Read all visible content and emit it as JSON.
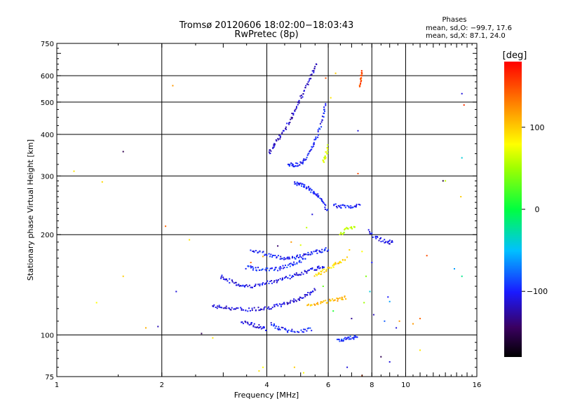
{
  "header": {
    "title": "Tromsø 20120606 18:02:00−18:03:43",
    "subtitle": "RwPretec (8p)",
    "stats_title": "Phases",
    "stats_o": "mean, sd,O:  −99.7, 17.6",
    "stats_x": "mean, sd,X:   87.1, 24.0"
  },
  "colorbar": {
    "unit": "[deg]",
    "range": [
      -180,
      180
    ],
    "ticks": [
      {
        "v": 100,
        "label": "100"
      },
      {
        "v": 0,
        "label": "0"
      },
      {
        "v": -100,
        "label": "−100"
      }
    ]
  },
  "chart_data": {
    "type": "scatter",
    "xlabel": "Frequency [MHz]",
    "ylabel": "Stationary phase Virtual Height [km]",
    "xscale": "log",
    "yscale": "log",
    "xlim": [
      1,
      16
    ],
    "ylim": [
      75,
      750
    ],
    "xticks": [
      {
        "v": 1,
        "label": "1"
      },
      {
        "v": 2,
        "label": "2"
      },
      {
        "v": 4,
        "label": "4"
      },
      {
        "v": 6,
        "label": "6"
      },
      {
        "v": 8,
        "label": "8"
      },
      {
        "v": 10,
        "label": "10"
      },
      {
        "v": 16,
        "label": "16"
      }
    ],
    "yticks": [
      {
        "v": 75,
        "label": "75"
      },
      {
        "v": 100,
        "label": "100"
      },
      {
        "v": 200,
        "label": "200"
      },
      {
        "v": 300,
        "label": "300"
      },
      {
        "v": 400,
        "label": "400"
      },
      {
        "v": 500,
        "label": "500"
      },
      {
        "v": 600,
        "label": "600"
      },
      {
        "v": 750,
        "label": "750"
      }
    ],
    "grid_x": [
      2,
      4,
      6,
      8,
      10
    ],
    "grid_y": [
      100,
      200,
      300,
      400,
      500,
      600
    ],
    "colorscale": "rainbow",
    "traces": [
      {
        "phase": -110,
        "points": [
          [
            2.8,
            122
          ],
          [
            3.0,
            121
          ],
          [
            3.2,
            120
          ],
          [
            3.5,
            119
          ],
          [
            3.8,
            120
          ],
          [
            4.1,
            121
          ],
          [
            4.4,
            123
          ],
          [
            4.7,
            126
          ],
          [
            5.0,
            129
          ],
          [
            5.3,
            133
          ],
          [
            5.5,
            137
          ]
        ]
      },
      {
        "phase": -105,
        "points": [
          [
            2.95,
            150
          ],
          [
            3.1,
            146
          ],
          [
            3.3,
            142
          ],
          [
            3.5,
            140
          ],
          [
            3.8,
            141
          ],
          [
            4.1,
            144
          ],
          [
            4.4,
            147
          ],
          [
            4.7,
            150
          ],
          [
            5.0,
            153
          ],
          [
            5.3,
            156
          ],
          [
            5.6,
            159
          ],
          [
            5.9,
            161
          ]
        ]
      },
      {
        "phase": -100,
        "points": [
          [
            3.6,
            180
          ],
          [
            3.9,
            176
          ],
          [
            4.2,
            172
          ],
          [
            4.5,
            170
          ],
          [
            4.8,
            171
          ],
          [
            5.1,
            173
          ],
          [
            5.4,
            176
          ],
          [
            5.7,
            179
          ],
          [
            6.0,
            181
          ]
        ]
      },
      {
        "phase": -95,
        "points": [
          [
            3.5,
            160
          ],
          [
            3.7,
            158
          ],
          [
            4.0,
            157
          ],
          [
            4.3,
            158
          ],
          [
            4.6,
            161
          ],
          [
            4.9,
            165
          ],
          [
            5.2,
            170
          ]
        ]
      },
      {
        "phase": -115,
        "points": [
          [
            4.05,
            350
          ],
          [
            4.2,
            370
          ],
          [
            4.4,
            400
          ],
          [
            4.6,
            430
          ],
          [
            4.8,
            470
          ],
          [
            5.0,
            510
          ],
          [
            5.2,
            560
          ],
          [
            5.4,
            610
          ],
          [
            5.55,
            650
          ]
        ]
      },
      {
        "phase": -100,
        "points": [
          [
            4.6,
            325
          ],
          [
            4.8,
            323
          ],
          [
            5.0,
            328
          ],
          [
            5.2,
            340
          ],
          [
            5.4,
            365
          ],
          [
            5.6,
            400
          ],
          [
            5.8,
            450
          ],
          [
            5.9,
            500
          ]
        ]
      },
      {
        "phase": -100,
        "points": [
          [
            4.1,
            108
          ],
          [
            4.3,
            105
          ],
          [
            4.6,
            103
          ],
          [
            5.0,
            103
          ],
          [
            5.4,
            104
          ]
        ]
      },
      {
        "phase": -110,
        "points": [
          [
            3.4,
            110
          ],
          [
            3.6,
            108
          ],
          [
            3.8,
            106
          ],
          [
            4.0,
            104
          ]
        ]
      },
      {
        "phase": -95,
        "points": [
          [
            6.4,
            97
          ],
          [
            6.7,
            97
          ],
          [
            7.0,
            98
          ],
          [
            7.3,
            100
          ]
        ]
      },
      {
        "phase": -100,
        "points": [
          [
            6.2,
            245
          ],
          [
            6.6,
            243
          ],
          [
            7.0,
            242
          ],
          [
            7.4,
            244
          ]
        ]
      },
      {
        "phase": -105,
        "points": [
          [
            7.8,
            205
          ],
          [
            8.3,
            195
          ],
          [
            8.8,
            190
          ],
          [
            9.2,
            190
          ]
        ]
      },
      {
        "phase": -100,
        "points": [
          [
            4.8,
            285
          ],
          [
            5.0,
            282
          ],
          [
            5.2,
            278
          ],
          [
            5.4,
            270
          ],
          [
            5.6,
            262
          ],
          [
            5.8,
            250
          ],
          [
            6.0,
            235
          ]
        ]
      },
      {
        "phase": 110,
        "points": [
          [
            5.2,
            122
          ],
          [
            5.6,
            124
          ],
          [
            6.0,
            126
          ],
          [
            6.4,
            128
          ],
          [
            6.8,
            130
          ]
        ]
      },
      {
        "phase": 95,
        "points": [
          [
            5.5,
            150
          ],
          [
            5.8,
            155
          ],
          [
            6.1,
            160
          ],
          [
            6.4,
            165
          ],
          [
            6.8,
            170
          ]
        ]
      },
      {
        "phase": 60,
        "points": [
          [
            6.5,
            200
          ],
          [
            6.8,
            208
          ],
          [
            7.2,
            210
          ]
        ]
      },
      {
        "phase": 70,
        "points": [
          [
            5.8,
            330
          ],
          [
            5.9,
            345
          ],
          [
            6.0,
            370
          ]
        ]
      },
      {
        "phase": 150,
        "points": [
          [
            7.4,
            560
          ],
          [
            7.45,
            590
          ],
          [
            7.5,
            620
          ]
        ]
      }
    ],
    "scattered": [
      {
        "x": 1.12,
        "y": 310,
        "phase": 90
      },
      {
        "x": 1.35,
        "y": 288,
        "phase": 95
      },
      {
        "x": 1.55,
        "y": 355,
        "phase": -150
      },
      {
        "x": 2.05,
        "y": 212,
        "phase": 140
      },
      {
        "x": 2.15,
        "y": 560,
        "phase": 120
      },
      {
        "x": 1.55,
        "y": 150,
        "phase": 100
      },
      {
        "x": 1.3,
        "y": 125,
        "phase": 80
      },
      {
        "x": 1.8,
        "y": 105,
        "phase": 110
      },
      {
        "x": 1.95,
        "y": 106,
        "phase": -120
      },
      {
        "x": 2.2,
        "y": 135,
        "phase": -110
      },
      {
        "x": 2.4,
        "y": 193,
        "phase": 90
      },
      {
        "x": 2.6,
        "y": 101,
        "phase": -150
      },
      {
        "x": 2.8,
        "y": 98,
        "phase": 90
      },
      {
        "x": 12.8,
        "y": 290,
        "phase": -160
      },
      {
        "x": 13.0,
        "y": 290,
        "phase": 60
      },
      {
        "x": 14.5,
        "y": 530,
        "phase": -110
      },
      {
        "x": 14.7,
        "y": 490,
        "phase": 160
      },
      {
        "x": 14.5,
        "y": 340,
        "phase": -40
      },
      {
        "x": 14.4,
        "y": 260,
        "phase": 100
      },
      {
        "x": 14.5,
        "y": 150,
        "phase": -20
      },
      {
        "x": 13.8,
        "y": 158,
        "phase": -60
      },
      {
        "x": 11.5,
        "y": 173,
        "phase": 150
      },
      {
        "x": 11.0,
        "y": 112,
        "phase": 140
      },
      {
        "x": 10.5,
        "y": 108,
        "phase": 120
      },
      {
        "x": 11.0,
        "y": 90,
        "phase": 90
      },
      {
        "x": 8.5,
        "y": 86,
        "phase": -150
      },
      {
        "x": 9.0,
        "y": 83,
        "phase": -110
      },
      {
        "x": 7.3,
        "y": 305,
        "phase": 150
      },
      {
        "x": 7.3,
        "y": 410,
        "phase": -110
      },
      {
        "x": 6.3,
        "y": 610,
        "phase": 100
      },
      {
        "x": 5.9,
        "y": 590,
        "phase": 150
      },
      {
        "x": 6.1,
        "y": 515,
        "phase": 90
      },
      {
        "x": 3.9,
        "y": 80,
        "phase": 80
      },
      {
        "x": 3.6,
        "y": 165,
        "phase": 140
      },
      {
        "x": 3.9,
        "y": 172,
        "phase": 110
      },
      {
        "x": 4.3,
        "y": 185,
        "phase": -140
      },
      {
        "x": 4.7,
        "y": 190,
        "phase": 120
      },
      {
        "x": 5.0,
        "y": 186,
        "phase": 70
      },
      {
        "x": 5.8,
        "y": 140,
        "phase": 30
      },
      {
        "x": 6.2,
        "y": 118,
        "phase": 10
      },
      {
        "x": 7.0,
        "y": 112,
        "phase": -130
      },
      {
        "x": 7.6,
        "y": 125,
        "phase": 50
      },
      {
        "x": 8.1,
        "y": 115,
        "phase": -120
      },
      {
        "x": 8.7,
        "y": 110,
        "phase": -80
      },
      {
        "x": 9.0,
        "y": 126,
        "phase": -60
      },
      {
        "x": 9.4,
        "y": 105,
        "phase": -110
      },
      {
        "x": 9.6,
        "y": 110,
        "phase": 120
      },
      {
        "x": 8.9,
        "y": 130,
        "phase": -100
      },
      {
        "x": 7.9,
        "y": 135,
        "phase": -40
      },
      {
        "x": 7.7,
        "y": 150,
        "phase": 40
      },
      {
        "x": 8.0,
        "y": 165,
        "phase": -100
      },
      {
        "x": 7.5,
        "y": 178,
        "phase": 80
      },
      {
        "x": 6.9,
        "y": 180,
        "phase": 100
      },
      {
        "x": 5.4,
        "y": 230,
        "phase": -110
      },
      {
        "x": 5.2,
        "y": 210,
        "phase": 60
      },
      {
        "x": 3.8,
        "y": 78,
        "phase": 90
      },
      {
        "x": 5.1,
        "y": 77,
        "phase": 80
      },
      {
        "x": 4.8,
        "y": 80,
        "phase": 100
      },
      {
        "x": 6.8,
        "y": 80,
        "phase": -110
      },
      {
        "x": 7.5,
        "y": 75.5,
        "phase": 150
      }
    ]
  }
}
